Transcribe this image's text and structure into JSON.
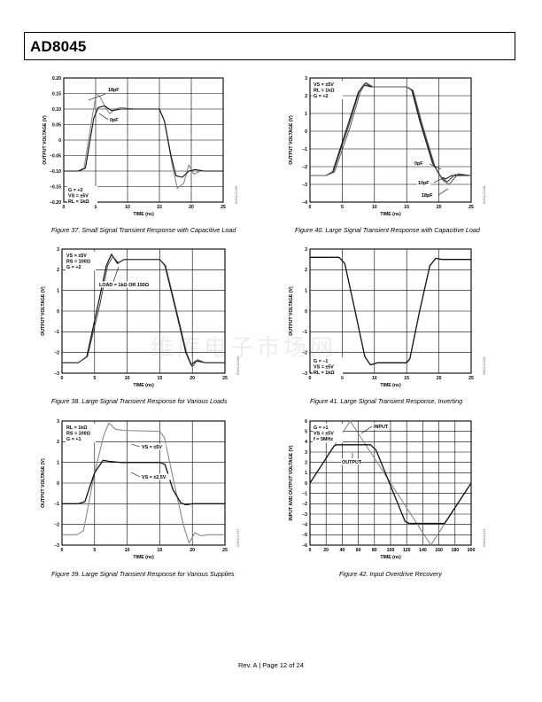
{
  "header": {
    "title": "AD8045"
  },
  "footer": {
    "text": "Rev. A | Page 12 of 24"
  },
  "watermark": "维库电子市场网",
  "chart_data": [
    {
      "id": "fig37",
      "type": "line",
      "title": "Figure 37. Small Signal Transient Response with Capacitive Load",
      "xlabel": "TIME (ns)",
      "ylabel": "OUTPUT VOLTAGE (V)",
      "xlim": [
        0,
        25
      ],
      "ylim": [
        -0.2,
        0.2
      ],
      "xticks": [
        "0",
        "5",
        "10",
        "15",
        "20",
        "25"
      ],
      "yticks": [
        "0.20",
        "0.15",
        "0.10",
        "0.05",
        "0",
        "–0.05",
        "–0.10",
        "–0.15",
        "–0.20"
      ],
      "conditions": [
        "G = +2",
        "VS = ±5V",
        "RL = 1kΩ"
      ],
      "code": "04942-0-015",
      "series": [
        {
          "name": "18pF",
          "x": [
            0,
            2.2,
            3.2,
            4.5,
            5.1,
            5.7,
            6.4,
            7.2,
            8,
            9,
            11,
            15,
            15.8,
            17,
            17.8,
            18.8,
            19.6,
            20.4,
            21.4,
            22.5,
            25
          ],
          "y": [
            -0.1,
            -0.1,
            -0.09,
            0.08,
            0.15,
            0.14,
            0.11,
            0.085,
            0.1,
            0.105,
            0.1,
            0.1,
            0.06,
            -0.08,
            -0.155,
            -0.14,
            -0.08,
            -0.11,
            -0.1,
            -0.1,
            -0.1
          ]
        },
        {
          "name": "0pF",
          "x": [
            0,
            2.4,
            3.4,
            4.7,
            5.4,
            6.4,
            7.5,
            9,
            12,
            15,
            15.8,
            16.8,
            17.6,
            18.6,
            19.6,
            20.6,
            22,
            25
          ],
          "y": [
            -0.1,
            -0.1,
            -0.09,
            0.07,
            0.105,
            0.11,
            0.095,
            0.1,
            0.1,
            0.1,
            0.06,
            -0.05,
            -0.115,
            -0.12,
            -0.1,
            -0.095,
            -0.1,
            -0.1
          ]
        }
      ],
      "annotations": [
        "18pF",
        "0pF"
      ]
    },
    {
      "id": "fig40",
      "type": "line",
      "title": "Figure 40. Large Signal Transient Response with Capacitive Load",
      "xlabel": "TIME (ns)",
      "ylabel": "OUTPUT VOLTAGE (V)",
      "xlim": [
        0,
        25
      ],
      "ylim": [
        -4,
        3
      ],
      "xticks": [
        "0",
        "5",
        "10",
        "15",
        "20",
        "25"
      ],
      "yticks": [
        "3",
        "2",
        "1",
        "0",
        "–1",
        "–2",
        "–3",
        "–4"
      ],
      "conditions": [
        "VS = ±5V",
        "RL = 1kΩ",
        "G = +2"
      ],
      "code": "04942-0-018",
      "series": [
        {
          "name": "0pF",
          "x": [
            0,
            2.5,
            3.5,
            6,
            7.5,
            8.3,
            9.5,
            15,
            15.8,
            17,
            19,
            20.3,
            21,
            22,
            25
          ],
          "y": [
            -2.5,
            -2.5,
            -2.3,
            0.5,
            2.2,
            2.6,
            2.5,
            2.5,
            2.3,
            0.6,
            -1.8,
            -2.6,
            -2.7,
            -2.5,
            -2.5
          ]
        },
        {
          "name": "10pF",
          "x": [
            0,
            2.5,
            3.6,
            6,
            7.6,
            8.5,
            9.6,
            15,
            15.9,
            17.2,
            19.2,
            20.5,
            21.3,
            22.5,
            25
          ],
          "y": [
            -2.5,
            -2.5,
            -2.3,
            0.3,
            2.2,
            2.7,
            2.5,
            2.5,
            2.3,
            0.5,
            -1.9,
            -2.7,
            -2.85,
            -2.45,
            -2.5
          ]
        },
        {
          "name": "18pF",
          "x": [
            0,
            2.5,
            3.8,
            6.2,
            7.8,
            8.7,
            9.8,
            15,
            16,
            17.4,
            19.4,
            20.7,
            21.6,
            23,
            25
          ],
          "y": [
            -2.5,
            -2.5,
            -2.3,
            0.2,
            2.2,
            2.75,
            2.5,
            2.5,
            2.3,
            0.4,
            -2,
            -2.8,
            -3,
            -2.4,
            -2.5
          ]
        }
      ],
      "annotations": [
        "0pF",
        "10pF",
        "18pF"
      ]
    },
    {
      "id": "fig38",
      "type": "line",
      "title": "Figure 38. Large Signal Transient Response for Various Loads",
      "xlabel": "TIME (ns)",
      "ylabel": "OUTPUT VOLTAGE (V)",
      "xlim": [
        0,
        25
      ],
      "ylim": [
        -3,
        3
      ],
      "xticks": [
        "0",
        "5",
        "10",
        "15",
        "20",
        "25"
      ],
      "yticks": [
        "3",
        "2",
        "1",
        "0",
        "–1",
        "–2",
        "–3"
      ],
      "conditions": [
        "VS = ±5V",
        "RS = 100Ω",
        "G = +2"
      ],
      "code": "04942-0-016",
      "series": [
        {
          "name": "LOAD = 1kΩ OR 150Ω",
          "x": [
            0,
            2.5,
            3.8,
            5.6,
            6.8,
            7.6,
            8.5,
            9.5,
            15,
            15.8,
            17.5,
            19,
            19.8,
            20.6,
            22,
            25
          ],
          "y": [
            -2.5,
            -2.5,
            -2.2,
            0.4,
            2.2,
            2.75,
            2.3,
            2.5,
            2.5,
            2.2,
            0,
            -2,
            -2.6,
            -2.4,
            -2.5,
            -2.5
          ]
        },
        {
          "name": "",
          "x": [
            0,
            2.5,
            3.9,
            5.8,
            7,
            7.8,
            8.6,
            9.6,
            15,
            15.9,
            17.6,
            19.1,
            20,
            20.8,
            22,
            25
          ],
          "y": [
            -2.5,
            -2.5,
            -2.2,
            0.3,
            2.2,
            2.65,
            2.35,
            2.5,
            2.5,
            2.2,
            0,
            -2,
            -2.7,
            -2.35,
            -2.5,
            -2.5
          ]
        }
      ],
      "annotations": [
        "LOAD = 1kΩ OR 150Ω"
      ]
    },
    {
      "id": "fig41",
      "type": "line",
      "title": "Figure 41. Large Signal Transient Response, Inverting",
      "xlabel": "TIME (ns)",
      "ylabel": "OUTPUT VOLTAGE (V)",
      "xlim": [
        0,
        25
      ],
      "ylim": [
        -3,
        3
      ],
      "xticks": [
        "0",
        "5",
        "10",
        "15",
        "20",
        "25"
      ],
      "yticks": [
        "3",
        "2",
        "1",
        "0",
        "–1",
        "–2",
        "–3"
      ],
      "conditions": [
        "G = –1",
        "VS = ±5V",
        "RL = 1kΩ"
      ],
      "code": "04942-0-019",
      "series": [
        {
          "name": "",
          "x": [
            0,
            4.5,
            5.4,
            7,
            8.5,
            9.4,
            10.5,
            15,
            15.5,
            17,
            18.6,
            19.5,
            20.5,
            21.5,
            25
          ],
          "y": [
            2.6,
            2.6,
            2.3,
            0,
            -2.2,
            -2.6,
            -2.5,
            -2.5,
            -2.3,
            0,
            2.2,
            2.55,
            2.5,
            2.5,
            2.5
          ]
        }
      ]
    },
    {
      "id": "fig39",
      "type": "line",
      "title": "Figure 39. Large Signal Transient Response for Various Supplies",
      "xlabel": "TIME (ns)",
      "ylabel": "OUTPUT VOLTAGE (V)",
      "xlim": [
        0,
        25
      ],
      "ylim": [
        -3,
        3
      ],
      "xticks": [
        "0",
        "5",
        "10",
        "15",
        "20",
        "25"
      ],
      "yticks": [
        "3",
        "2",
        "1",
        "0",
        "–1",
        "–2",
        "–3"
      ],
      "conditions": [
        "RL = 1kΩ",
        "RS = 100Ω",
        "G = +1"
      ],
      "code": "04942-0-017",
      "series": [
        {
          "name": "VS = ±5V",
          "x": [
            0,
            2.3,
            3.3,
            5,
            6.4,
            7.2,
            8.2,
            9.3,
            15,
            15.7,
            17.2,
            18.6,
            19.5,
            20.4,
            21.3,
            22.5,
            25
          ],
          "y": [
            -2.5,
            -2.5,
            -2.3,
            0.5,
            2.3,
            2.9,
            2.6,
            2.55,
            2.5,
            2.2,
            0,
            -2,
            -2.9,
            -2.4,
            -2.55,
            -2.5,
            -2.5
          ]
        },
        {
          "name": "VS = ±2.5V",
          "x": [
            0,
            2.5,
            3.5,
            5,
            6.3,
            7.2,
            9,
            15,
            15.8,
            17,
            18.2,
            19,
            20,
            25
          ],
          "y": [
            -1,
            -1,
            -0.9,
            0.5,
            1.1,
            1.05,
            1.0,
            1.0,
            0.9,
            -0.3,
            -0.95,
            -1.05,
            -1,
            -1
          ]
        }
      ],
      "annotations": [
        "VS = ±5V",
        "VS = ±2.5V"
      ]
    },
    {
      "id": "fig42",
      "type": "line",
      "title": "Figure 42. Input Overdrive Recovery",
      "xlabel": "TIME (ns)",
      "ylabel": "INPUT AND OUTPUT VOLTAGE (V)",
      "xlim": [
        0,
        200
      ],
      "ylim": [
        -6,
        6
      ],
      "xticks": [
        "0",
        "20",
        "40",
        "60",
        "80",
        "100",
        "120",
        "140",
        "160",
        "180",
        "200"
      ],
      "yticks": [
        "6",
        "5",
        "4",
        "3",
        "2",
        "1",
        "0",
        "–1",
        "–2",
        "–3",
        "–4",
        "–5",
        "–6"
      ],
      "conditions": [
        "G = +1",
        "VS = ±5V",
        "f = 5MHz"
      ],
      "code": "04942-0-021",
      "series": [
        {
          "name": "INPUT",
          "x": [
            0,
            50,
            150,
            200
          ],
          "y": [
            0,
            6,
            -6,
            0
          ]
        },
        {
          "name": "OUTPUT",
          "x": [
            0,
            30,
            33,
            75,
            82,
            118,
            123,
            167,
            200
          ],
          "y": [
            0,
            3.6,
            3.7,
            3.7,
            3.2,
            -3.7,
            -3.9,
            -3.9,
            0
          ]
        }
      ],
      "annotations": [
        "INPUT",
        "OUTPUT"
      ]
    }
  ]
}
